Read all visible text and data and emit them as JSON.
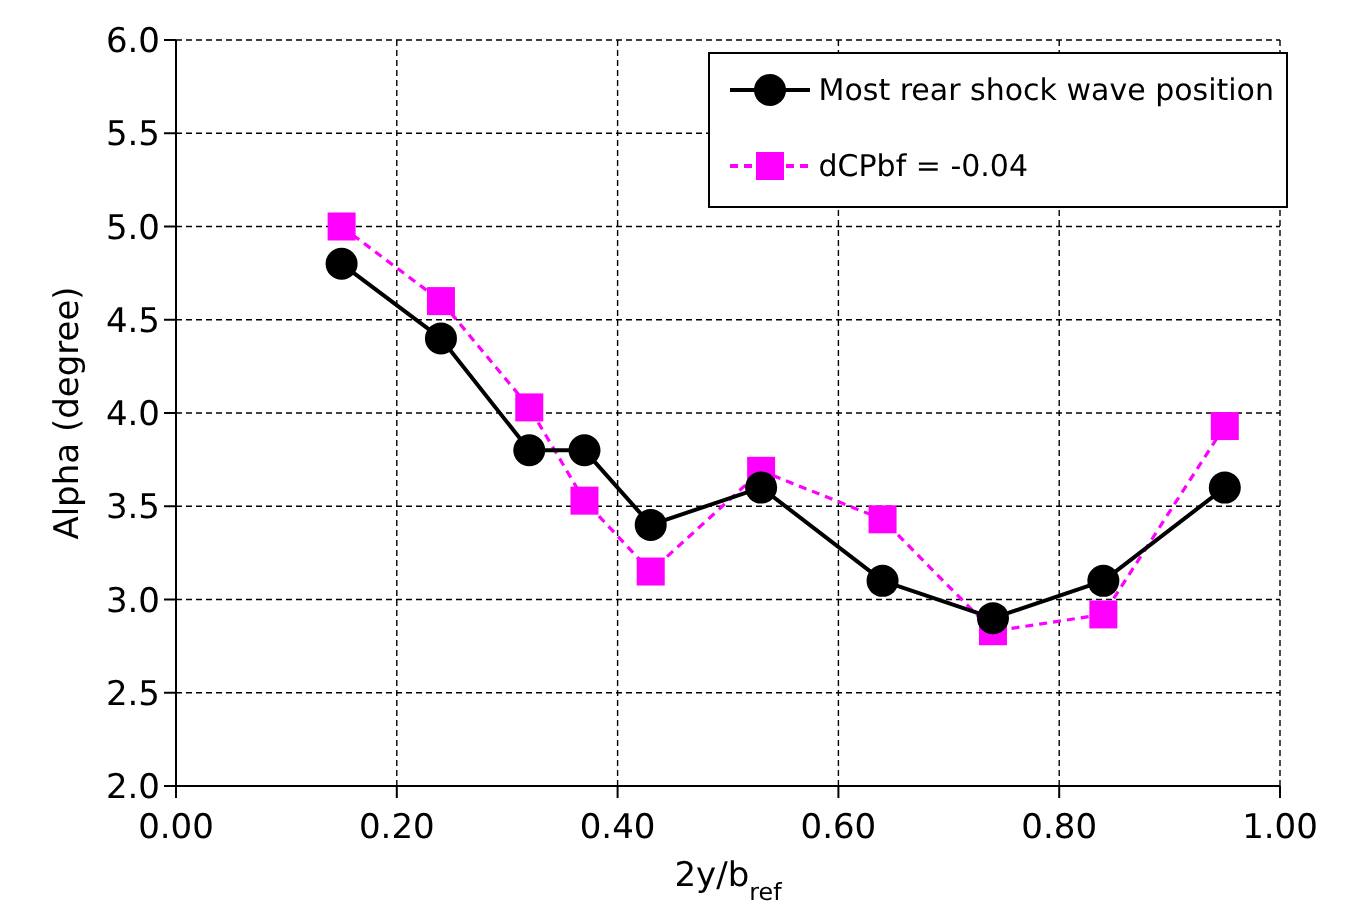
{
  "chart_data": {
    "type": "line",
    "xlabel": "2y/b$_{ref}$",
    "ylabel": "Alpha (degree)",
    "x": [
      0.15,
      0.24,
      0.32,
      0.37,
      0.43,
      0.53,
      0.64,
      0.74,
      0.84,
      0.95
    ],
    "series": [
      {
        "name": "Most rear shock wave position",
        "color": "#000000",
        "marker": "circle",
        "line_style": "solid",
        "values": [
          4.8,
          4.4,
          3.8,
          3.8,
          3.4,
          3.6,
          3.1,
          2.9,
          3.1,
          3.6
        ]
      },
      {
        "name": "dCPbf = -0.04",
        "color": "#ff00ff",
        "marker": "square",
        "line_style": "dashed",
        "values": [
          5.0,
          4.6,
          4.03,
          3.53,
          3.15,
          3.69,
          3.43,
          2.83,
          2.92,
          3.93
        ]
      }
    ],
    "xlim": [
      0,
      1
    ],
    "xticks": [
      {
        "value": 0,
        "label": "0.00"
      },
      {
        "value": 0.2,
        "label": "0.20"
      },
      {
        "value": 0.4,
        "label": "0.40"
      },
      {
        "value": 0.6,
        "label": "0.60"
      },
      {
        "value": 0.8,
        "label": "0.80"
      },
      {
        "value": 1,
        "label": "1.00"
      }
    ],
    "ylim": [
      2,
      6
    ],
    "yticks": [
      {
        "value": 2,
        "label": "2.0"
      },
      {
        "value": 2.5,
        "label": "2.5"
      },
      {
        "value": 3,
        "label": "3.0"
      },
      {
        "value": 3.5,
        "label": "3.5"
      },
      {
        "value": 4,
        "label": "4.0"
      },
      {
        "value": 4.5,
        "label": "4.5"
      },
      {
        "value": 5,
        "label": "5.0"
      },
      {
        "value": 5.5,
        "label": "5.5"
      },
      {
        "value": 6,
        "label": "6.0"
      }
    ],
    "grid": true,
    "legend": "top right"
  }
}
